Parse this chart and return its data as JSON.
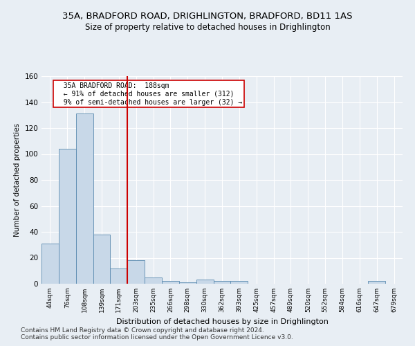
{
  "title_line1": "35A, BRADFORD ROAD, DRIGHLINGTON, BRADFORD, BD11 1AS",
  "title_line2": "Size of property relative to detached houses in Drighlington",
  "xlabel": "Distribution of detached houses by size in Drighlington",
  "ylabel": "Number of detached properties",
  "footer_line1": "Contains HM Land Registry data © Crown copyright and database right 2024.",
  "footer_line2": "Contains public sector information licensed under the Open Government Licence v3.0.",
  "bar_labels": [
    "44sqm",
    "76sqm",
    "108sqm",
    "139sqm",
    "171sqm",
    "203sqm",
    "235sqm",
    "266sqm",
    "298sqm",
    "330sqm",
    "362sqm",
    "393sqm",
    "425sqm",
    "457sqm",
    "489sqm",
    "520sqm",
    "552sqm",
    "584sqm",
    "616sqm",
    "647sqm",
    "679sqm"
  ],
  "bar_values": [
    31,
    104,
    131,
    38,
    12,
    18,
    5,
    2,
    1,
    3,
    2,
    2,
    0,
    0,
    0,
    0,
    0,
    0,
    0,
    2,
    0
  ],
  "bar_color": "#c8d8e8",
  "bar_edge_color": "#5a8ab0",
  "vline_x_index": 4.5,
  "vline_color": "#cc0000",
  "annotation_text_line1": "35A BRADFORD ROAD:  188sqm",
  "annotation_text_line2": "← 91% of detached houses are smaller (312)",
  "annotation_text_line3": "9% of semi-detached houses are larger (32) →",
  "annotation_box_color": "#ffffff",
  "annotation_box_edge_color": "#cc0000",
  "ylim": [
    0,
    160
  ],
  "yticks": [
    0,
    20,
    40,
    60,
    80,
    100,
    120,
    140,
    160
  ],
  "bg_color": "#e8eef4",
  "grid_color": "#ffffff",
  "title_fontsize": 9.5,
  "subtitle_fontsize": 8.5,
  "footer_fontsize": 6.5
}
